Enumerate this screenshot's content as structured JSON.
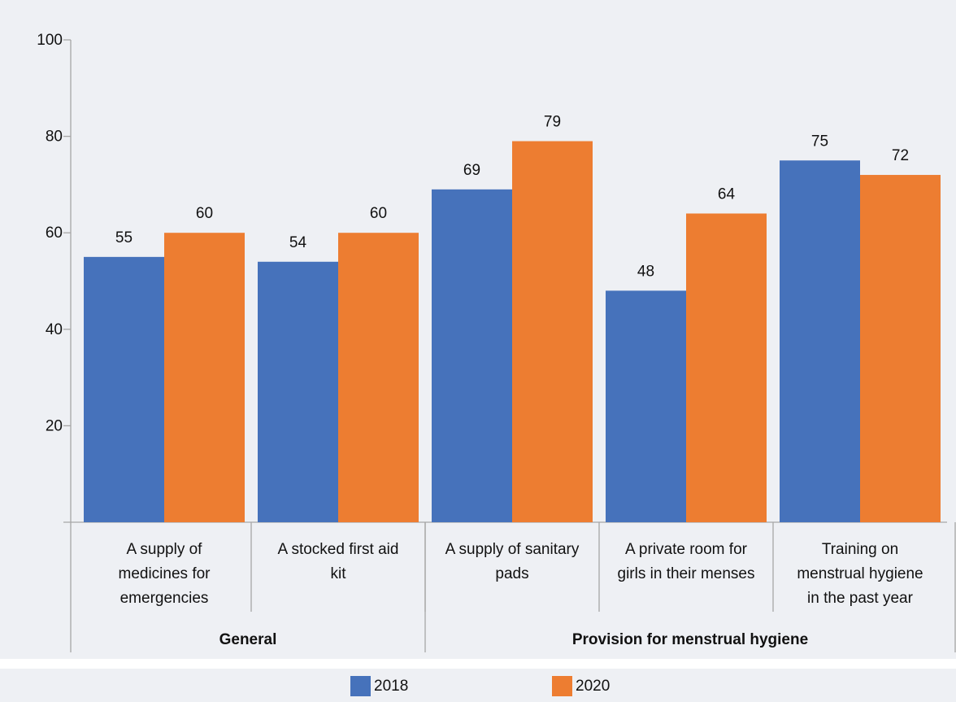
{
  "chart_data": {
    "type": "bar",
    "categories": [
      [
        "A supply of",
        "medicines for",
        "emergencies"
      ],
      [
        "A stocked first aid",
        "kit"
      ],
      [
        "A supply of sanitary",
        "pads"
      ],
      [
        "A private room for",
        "girls in their menses"
      ],
      [
        "Training on",
        "menstrual hygiene",
        "in the past year"
      ]
    ],
    "groups": [
      {
        "label": "General",
        "categories": [
          0,
          1
        ]
      },
      {
        "label": "Provision for menstrual hygiene",
        "categories": [
          2,
          3,
          4
        ]
      }
    ],
    "series": [
      {
        "name": "2018",
        "values": [
          55,
          54,
          69,
          48,
          75
        ],
        "labels": [
          "55",
          "54",
          "69",
          "48",
          "75"
        ],
        "color": "#4672bb"
      },
      {
        "name": "2020",
        "values": [
          60,
          60,
          79,
          64,
          72
        ],
        "labels": [
          "60",
          "60",
          "79",
          "64",
          "72"
        ],
        "color": "#ed7d31"
      }
    ],
    "ylim": [
      0,
      100
    ],
    "yticks": [
      20,
      40,
      60,
      80,
      100
    ],
    "grid": false,
    "legend_position": "bottom"
  }
}
